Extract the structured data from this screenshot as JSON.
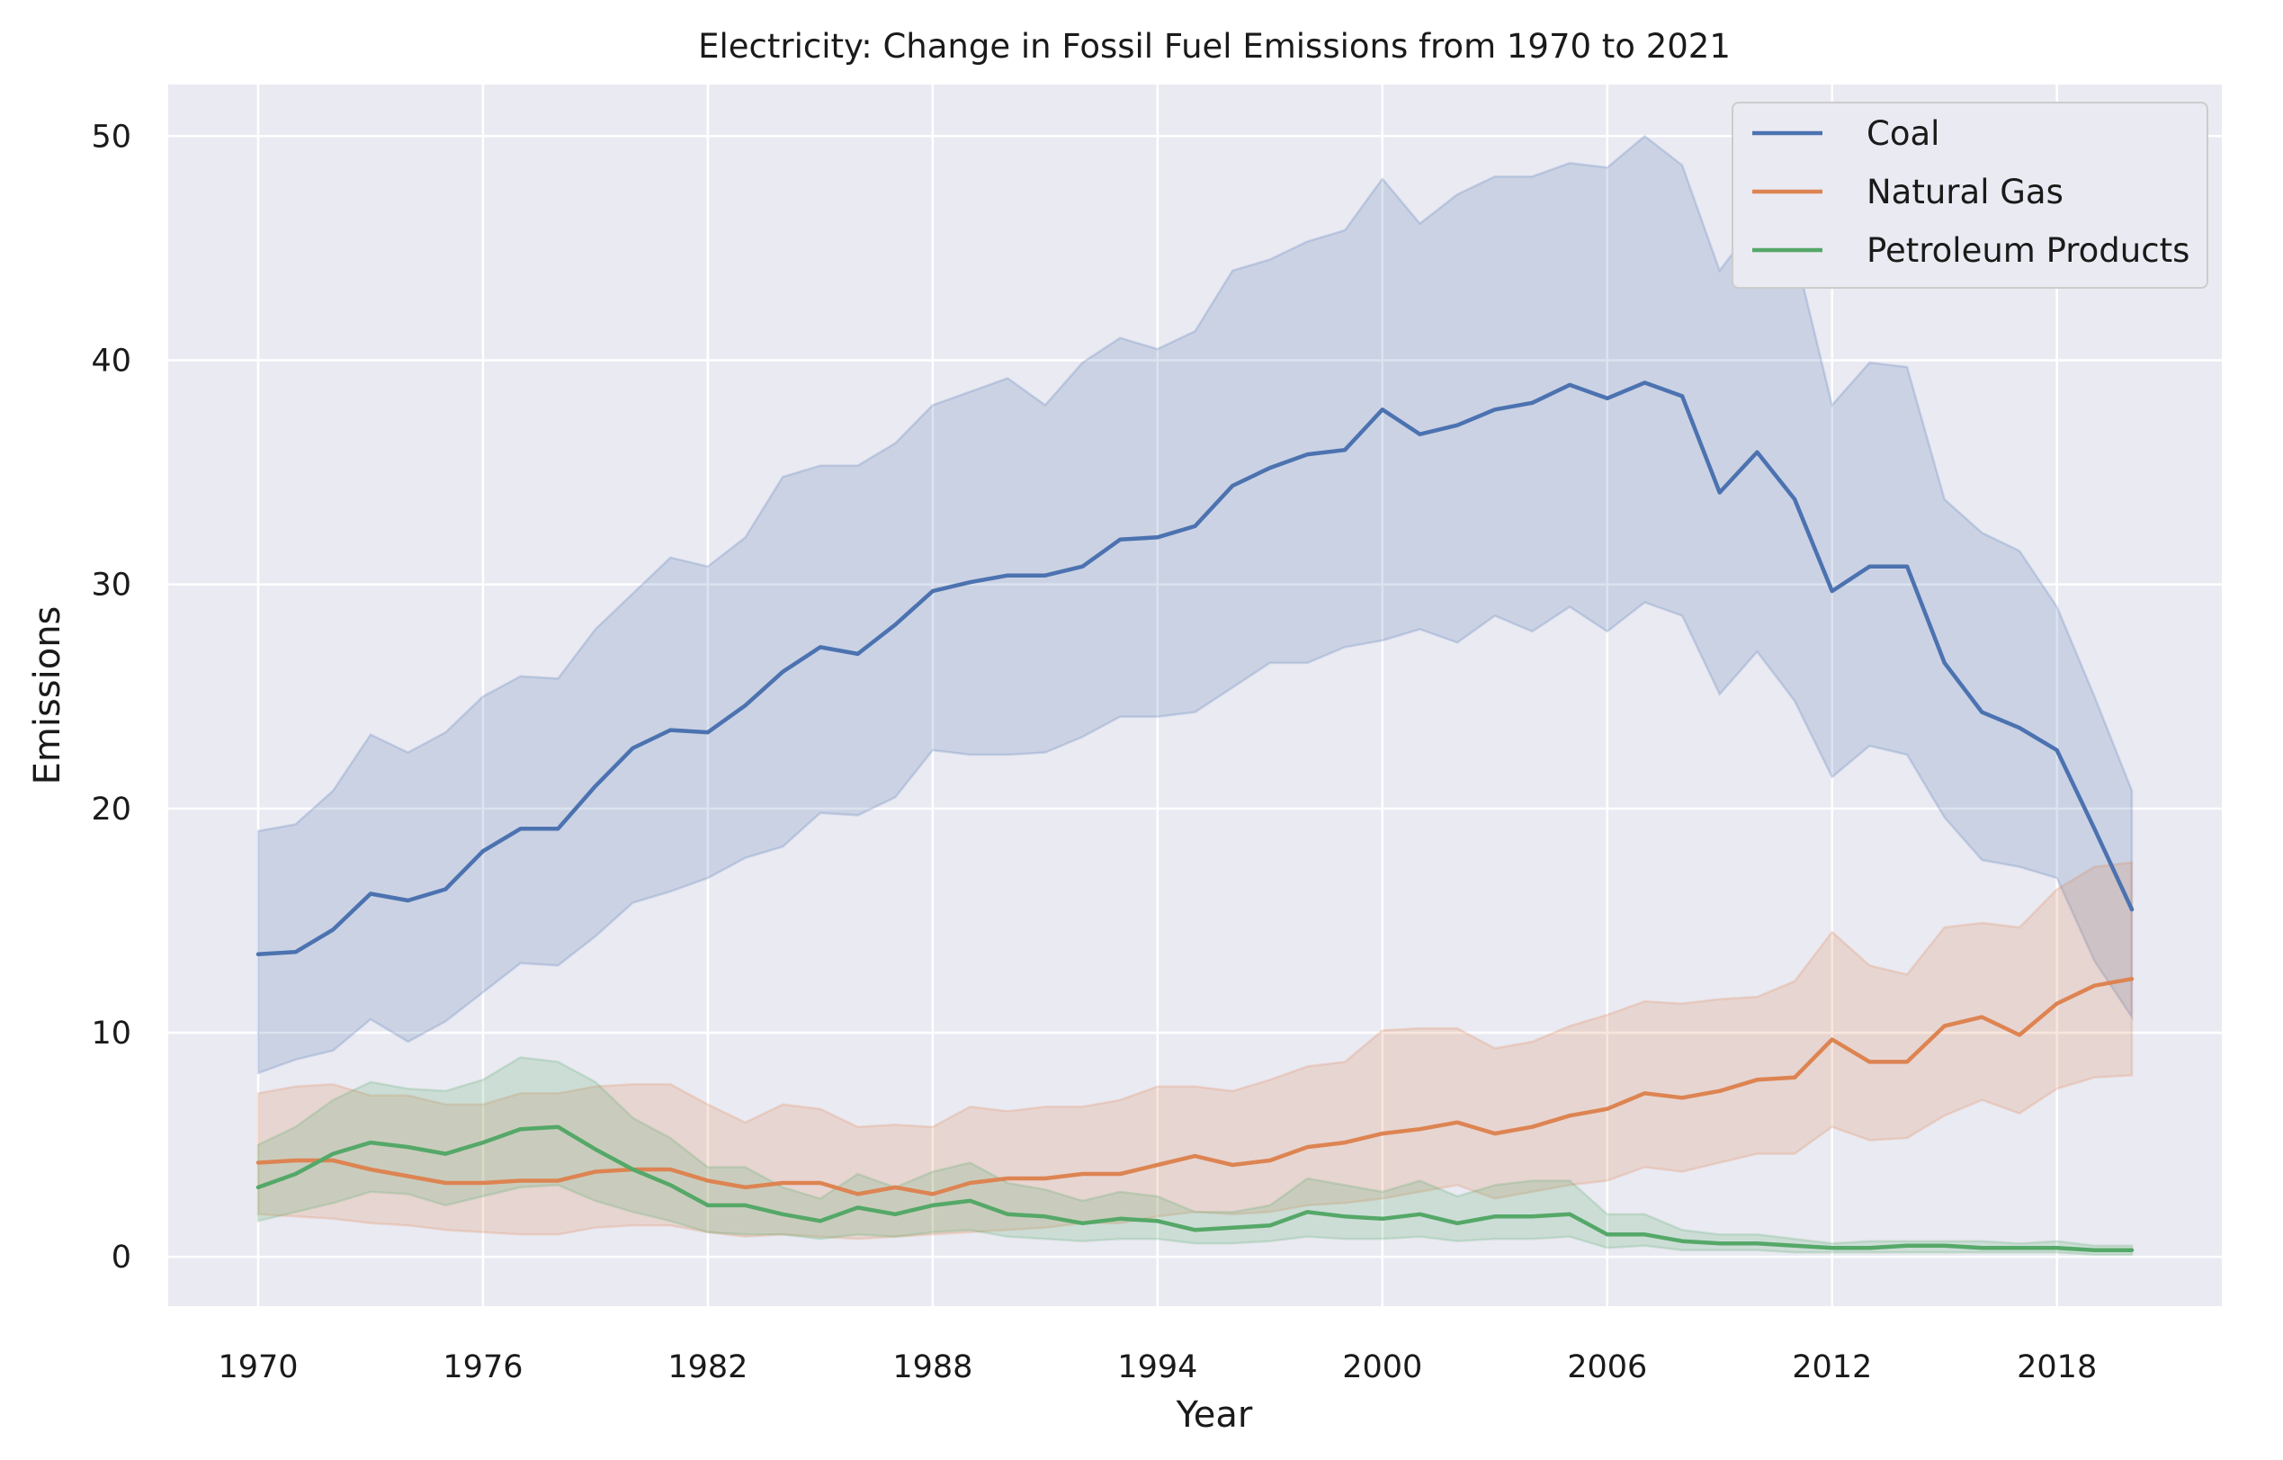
{
  "chart_data": {
    "type": "line",
    "title": "Electricity: Change in Fossil Fuel Emissions from 1970 to 2021",
    "xlabel": "Year",
    "ylabel": "Emissions",
    "x": [
      1970,
      1971,
      1972,
      1973,
      1974,
      1975,
      1976,
      1977,
      1978,
      1979,
      1980,
      1981,
      1982,
      1983,
      1984,
      1985,
      1986,
      1987,
      1988,
      1989,
      1990,
      1991,
      1992,
      1993,
      1994,
      1995,
      1996,
      1997,
      1998,
      1999,
      2000,
      2001,
      2002,
      2003,
      2004,
      2005,
      2006,
      2007,
      2008,
      2009,
      2010,
      2011,
      2012,
      2013,
      2014,
      2015,
      2016,
      2017,
      2018,
      2019,
      2020
    ],
    "xlim": [
      1967.6,
      2022.4
    ],
    "ylim": [
      -2.2,
      52.3
    ],
    "xticks": [
      1970,
      1976,
      1982,
      1988,
      1994,
      2000,
      2006,
      2012,
      2018
    ],
    "xtick_labels": [
      "1970",
      "1976",
      "1982",
      "1988",
      "1994",
      "2000",
      "2006",
      "2012",
      "2018"
    ],
    "yticks": [
      0,
      10,
      20,
      30,
      40,
      50
    ],
    "ytick_labels": [
      "0",
      "10",
      "20",
      "30",
      "40",
      "50"
    ],
    "grid": true,
    "legend_position": "top-right",
    "series": [
      {
        "name": "Coal",
        "color": "#4c72b0",
        "values": [
          13.5,
          13.6,
          14.6,
          16.2,
          15.9,
          16.4,
          18.1,
          19.1,
          19.1,
          21.0,
          22.7,
          23.5,
          23.4,
          24.6,
          26.1,
          27.2,
          26.9,
          28.2,
          29.7,
          30.1,
          30.4,
          30.4,
          30.8,
          32.0,
          32.1,
          32.6,
          34.4,
          35.2,
          35.8,
          36.0,
          37.8,
          36.7,
          37.1,
          37.8,
          38.1,
          38.9,
          38.3,
          39.0,
          38.4,
          34.1,
          35.9,
          33.8,
          29.7,
          30.8,
          30.8,
          26.5,
          24.3,
          23.6,
          22.6,
          19.1,
          15.5
        ],
        "lower": [
          8.2,
          8.8,
          9.2,
          10.6,
          9.6,
          10.5,
          11.8,
          13.1,
          13.0,
          14.3,
          15.8,
          16.3,
          16.9,
          17.8,
          18.3,
          19.8,
          19.7,
          20.5,
          22.6,
          22.4,
          22.4,
          22.5,
          23.2,
          24.1,
          24.1,
          24.3,
          25.4,
          26.5,
          26.5,
          27.2,
          27.5,
          28.0,
          27.4,
          28.6,
          27.9,
          29.0,
          27.9,
          29.2,
          28.6,
          25.1,
          27.0,
          24.8,
          21.4,
          22.8,
          22.4,
          19.6,
          17.7,
          17.4,
          16.9,
          13.2,
          10.7
        ],
        "upper": [
          19.0,
          19.3,
          20.8,
          23.3,
          22.5,
          23.4,
          25.0,
          25.9,
          25.8,
          28.0,
          29.6,
          31.2,
          30.8,
          32.1,
          34.8,
          35.3,
          35.3,
          36.3,
          38.0,
          38.6,
          39.2,
          38.0,
          39.9,
          41.0,
          40.5,
          41.3,
          44.0,
          44.5,
          45.3,
          45.8,
          48.1,
          46.1,
          47.4,
          48.2,
          48.2,
          48.8,
          48.6,
          50.0,
          48.7,
          44.0,
          46.2,
          44.9,
          38.0,
          39.9,
          39.7,
          33.8,
          32.3,
          31.5,
          29.0,
          25.0,
          20.8
        ]
      },
      {
        "name": "Natural Gas",
        "color": "#dd8452",
        "values": [
          4.2,
          4.3,
          4.3,
          3.9,
          3.6,
          3.3,
          3.3,
          3.4,
          3.4,
          3.8,
          3.9,
          3.9,
          3.4,
          3.1,
          3.3,
          3.3,
          2.8,
          3.1,
          2.8,
          3.3,
          3.5,
          3.5,
          3.7,
          3.7,
          4.1,
          4.5,
          4.1,
          4.3,
          4.9,
          5.1,
          5.5,
          5.7,
          6.0,
          5.5,
          5.8,
          6.3,
          6.6,
          7.3,
          7.1,
          7.4,
          7.9,
          8.0,
          9.7,
          8.7,
          8.7,
          10.3,
          10.7,
          9.9,
          11.3,
          12.1,
          12.4
        ],
        "lower": [
          1.9,
          1.8,
          1.7,
          1.5,
          1.4,
          1.2,
          1.1,
          1.0,
          1.0,
          1.3,
          1.4,
          1.4,
          1.1,
          0.9,
          1.0,
          0.9,
          0.8,
          0.9,
          1.0,
          1.1,
          1.2,
          1.3,
          1.5,
          1.5,
          1.8,
          2.0,
          1.9,
          2.0,
          2.3,
          2.4,
          2.6,
          2.9,
          3.2,
          2.6,
          2.9,
          3.2,
          3.4,
          4.0,
          3.8,
          4.2,
          4.6,
          4.6,
          5.8,
          5.2,
          5.3,
          6.3,
          7.0,
          6.4,
          7.5,
          8.0,
          8.1
        ],
        "upper": [
          7.3,
          7.6,
          7.7,
          7.2,
          7.2,
          6.8,
          6.8,
          7.3,
          7.3,
          7.6,
          7.7,
          7.7,
          6.8,
          6.0,
          6.8,
          6.6,
          5.8,
          5.9,
          5.8,
          6.7,
          6.5,
          6.7,
          6.7,
          7.0,
          7.6,
          7.6,
          7.4,
          7.9,
          8.5,
          8.7,
          10.1,
          10.2,
          10.2,
          9.3,
          9.6,
          10.3,
          10.8,
          11.4,
          11.3,
          11.5,
          11.6,
          12.3,
          14.5,
          13.0,
          12.6,
          14.7,
          14.9,
          14.7,
          16.4,
          17.4,
          17.6
        ]
      },
      {
        "name": "Petroleum Products",
        "color": "#55a868",
        "values": [
          3.1,
          3.7,
          4.6,
          5.1,
          4.9,
          4.6,
          5.1,
          5.7,
          5.8,
          4.8,
          3.9,
          3.2,
          2.3,
          2.3,
          1.9,
          1.6,
          2.2,
          1.9,
          2.3,
          2.5,
          1.9,
          1.8,
          1.5,
          1.7,
          1.6,
          1.2,
          1.3,
          1.4,
          2.0,
          1.8,
          1.7,
          1.9,
          1.5,
          1.8,
          1.8,
          1.9,
          1.0,
          1.0,
          0.7,
          0.6,
          0.6,
          0.5,
          0.4,
          0.4,
          0.5,
          0.5,
          0.4,
          0.4,
          0.4,
          0.3,
          0.3
        ],
        "lower": [
          1.6,
          2.0,
          2.4,
          2.9,
          2.8,
          2.3,
          2.7,
          3.1,
          3.2,
          2.5,
          2.0,
          1.6,
          1.1,
          1.0,
          1.0,
          0.8,
          1.0,
          0.9,
          1.1,
          1.2,
          0.9,
          0.8,
          0.7,
          0.8,
          0.8,
          0.6,
          0.6,
          0.7,
          0.9,
          0.8,
          0.8,
          0.9,
          0.7,
          0.8,
          0.8,
          0.9,
          0.4,
          0.5,
          0.3,
          0.3,
          0.3,
          0.2,
          0.2,
          0.2,
          0.2,
          0.2,
          0.2,
          0.2,
          0.2,
          0.1,
          0.1
        ],
        "upper": [
          5.0,
          5.8,
          7.0,
          7.8,
          7.5,
          7.4,
          7.9,
          8.9,
          8.7,
          7.8,
          6.2,
          5.3,
          4.0,
          4.0,
          3.1,
          2.6,
          3.7,
          3.1,
          3.8,
          4.2,
          3.3,
          3.0,
          2.5,
          2.9,
          2.7,
          2.0,
          2.0,
          2.3,
          3.5,
          3.2,
          2.9,
          3.4,
          2.7,
          3.2,
          3.4,
          3.4,
          1.9,
          1.9,
          1.2,
          1.0,
          1.0,
          0.8,
          0.6,
          0.7,
          0.7,
          0.7,
          0.7,
          0.6,
          0.7,
          0.5,
          0.5
        ]
      }
    ]
  }
}
